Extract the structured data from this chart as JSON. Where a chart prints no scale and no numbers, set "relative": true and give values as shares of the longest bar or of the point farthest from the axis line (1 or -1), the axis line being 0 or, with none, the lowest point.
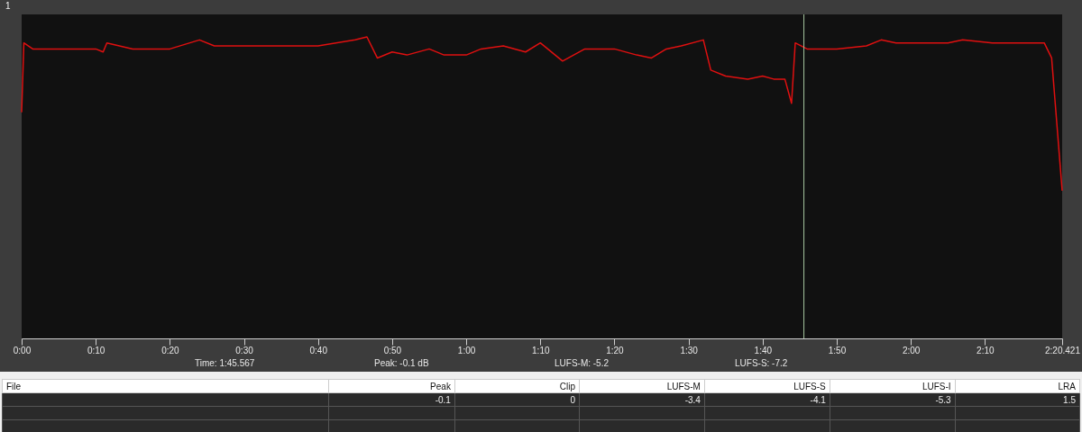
{
  "chart_data": {
    "type": "line",
    "title": "1",
    "relative": true,
    "grid": false,
    "marker": "none",
    "line_style": "solid",
    "x": [
      0,
      0.3,
      1.5,
      5,
      10,
      11,
      11.5,
      15,
      20,
      24,
      26,
      30,
      35,
      40,
      45,
      46.6,
      48,
      50,
      52,
      55,
      57,
      60,
      62,
      65,
      68,
      70,
      73,
      76,
      80,
      83,
      85,
      87,
      89,
      92,
      93,
      95,
      98,
      100,
      101.5,
      103,
      103.9,
      104.4,
      106,
      110,
      114,
      116,
      118,
      122,
      125,
      127,
      131,
      135,
      138,
      139,
      140.421
    ],
    "series": [
      {
        "color": "#e01010",
        "values": [
          0.75,
          0.98,
          0.96,
          0.96,
          0.96,
          0.95,
          0.98,
          0.96,
          0.96,
          0.99,
          0.97,
          0.97,
          0.97,
          0.97,
          0.99,
          1,
          0.93,
          0.95,
          0.94,
          0.96,
          0.94,
          0.94,
          0.96,
          0.97,
          0.95,
          0.98,
          0.92,
          0.96,
          0.96,
          0.94,
          0.93,
          0.96,
          0.97,
          0.99,
          0.89,
          0.87,
          0.86,
          0.87,
          0.86,
          0.86,
          0.78,
          0.98,
          0.96,
          0.96,
          0.97,
          0.99,
          0.98,
          0.98,
          0.98,
          0.99,
          0.98,
          0.98,
          0.98,
          0.93,
          0.49
        ]
      }
    ],
    "xlim": [
      0,
      140.421
    ],
    "xticks": [
      {
        "value": 0,
        "label": "0:00"
      },
      {
        "value": 10,
        "label": "0:10"
      },
      {
        "value": 20,
        "label": "0:20"
      },
      {
        "value": 30,
        "label": "0:30"
      },
      {
        "value": 40,
        "label": "0:40"
      },
      {
        "value": 50,
        "label": "0:50"
      },
      {
        "value": 60,
        "label": "1:00"
      },
      {
        "value": 70,
        "label": "1:10"
      },
      {
        "value": 80,
        "label": "1:20"
      },
      {
        "value": 90,
        "label": "1:30"
      },
      {
        "value": 100,
        "label": "1:40"
      },
      {
        "value": 110,
        "label": "1:50"
      },
      {
        "value": 120,
        "label": "2:00"
      },
      {
        "value": 130,
        "label": "2:10"
      },
      {
        "value": 140.421,
        "label": "2:20.421"
      }
    ],
    "ref_lines": [
      {
        "axis": "x",
        "value": 105.567,
        "color": "#a8c8a0"
      }
    ],
    "annotations": [
      "Time: 1:45.567",
      "Peak: -0.1 dB",
      "LUFS-M: -5.2",
      "LUFS-S: -7.2",
      "File",
      "Peak",
      "Clip",
      "LUFS-M",
      "LUFS-S",
      "LUFS-I",
      "LRA",
      "-0.1",
      "0",
      "-3.4",
      "-4.1",
      "-5.3",
      "1.5"
    ]
  }
}
